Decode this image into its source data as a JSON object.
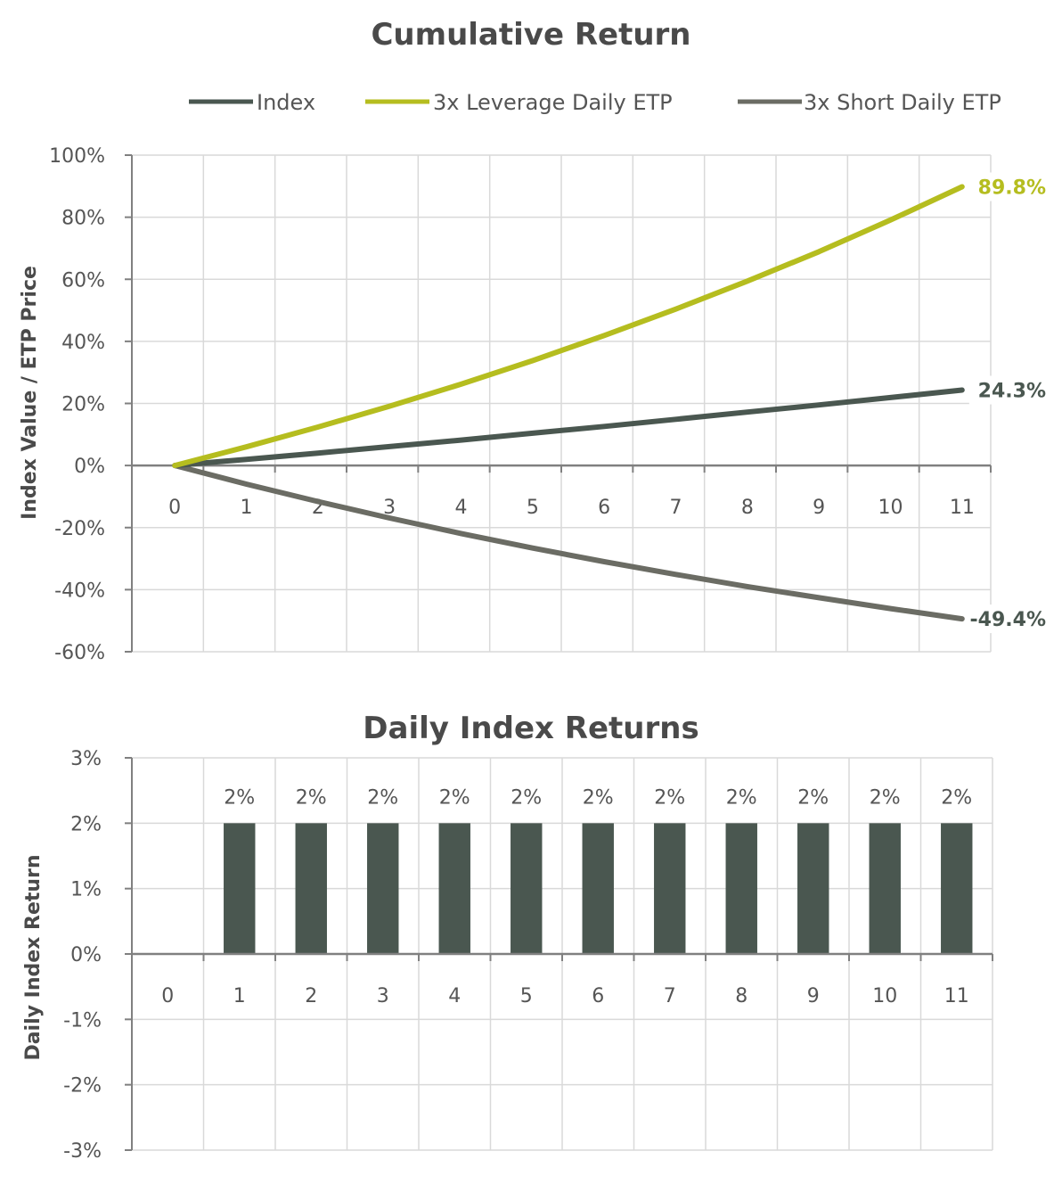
{
  "colors": {
    "index": "#4a5750",
    "leverage": "#b5bd1f",
    "short": "#6b6c64",
    "bar": "#4a5750",
    "grid": "#d9d9d9",
    "axis": "#808080"
  },
  "chart_data": [
    {
      "type": "line",
      "title": "Cumulative Return",
      "ylabel": "Index Value / ETP Price",
      "xlabel": "",
      "x": [
        0,
        1,
        2,
        3,
        4,
        5,
        6,
        7,
        8,
        9,
        10,
        11
      ],
      "x_labels": [
        "0",
        "1",
        "2",
        "3",
        "4",
        "5",
        "6",
        "7",
        "8",
        "9",
        "10",
        "11"
      ],
      "ylim": [
        -60,
        100
      ],
      "yticks": [
        100,
        80,
        60,
        40,
        20,
        0,
        -20,
        -40,
        -60
      ],
      "ytick_labels": [
        "100%",
        "80%",
        "60%",
        "40%",
        "20%",
        "0%",
        "-20%",
        "-40%",
        "-60%"
      ],
      "grid": true,
      "legend_position": "top",
      "series": [
        {
          "name": "Index",
          "color_key": "index",
          "values": [
            0,
            2.0,
            4.0,
            6.1,
            8.2,
            10.4,
            12.6,
            14.9,
            17.2,
            19.5,
            21.9,
            24.3
          ],
          "end_label": "24.3%"
        },
        {
          "name": "3x Leverage Daily ETP",
          "color_key": "leverage",
          "values": [
            0,
            6.0,
            12.4,
            19.1,
            26.2,
            33.8,
            41.9,
            50.4,
            59.4,
            68.9,
            79.1,
            89.8
          ],
          "end_label": "89.8%"
        },
        {
          "name": "3x Short Daily ETP",
          "color_key": "short",
          "values": [
            0,
            -6.0,
            -11.6,
            -16.9,
            -21.9,
            -26.6,
            -31.0,
            -35.1,
            -39.0,
            -42.6,
            -46.1,
            -49.4
          ],
          "end_label": "-49.4%"
        }
      ]
    },
    {
      "type": "bar",
      "title": "Daily Index Returns",
      "ylabel": "Daily Index Return",
      "xlabel": "",
      "categories": [
        "0",
        "1",
        "2",
        "3",
        "4",
        "5",
        "6",
        "7",
        "8",
        "9",
        "10",
        "11"
      ],
      "values": [
        null,
        2,
        2,
        2,
        2,
        2,
        2,
        2,
        2,
        2,
        2,
        2
      ],
      "data_labels": [
        "",
        "2%",
        "2%",
        "2%",
        "2%",
        "2%",
        "2%",
        "2%",
        "2%",
        "2%",
        "2%",
        "2%"
      ],
      "ylim": [
        -3,
        3
      ],
      "yticks": [
        3,
        2,
        1,
        0,
        -1,
        -2,
        -3
      ],
      "ytick_labels": [
        "3%",
        "2%",
        "1%",
        "0%",
        "-1%",
        "-2%",
        "-3%"
      ],
      "grid": true
    }
  ]
}
